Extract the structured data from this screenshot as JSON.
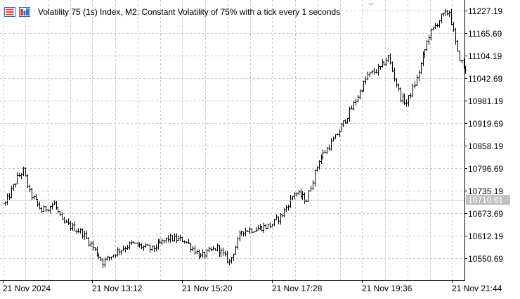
{
  "window": {
    "title": "Volatility 75 (1s) Index, M2:  Constant Volatility of 75% with a tick every 1 seconds",
    "icons": [
      "indicator-list-icon",
      "object-list-icon"
    ]
  },
  "colors": {
    "background": "#ffffff",
    "grid": "#c8c8c8",
    "bars": "#000000",
    "bid_line": "#c0c0c0",
    "bid_label_bg": "#c0c0c0"
  },
  "chart_data": {
    "type": "ohlc",
    "symbol": "Volatility 75 (1s) Index",
    "timeframe": "M2",
    "grid": true,
    "bid_price": "10710.61",
    "ylim": [
      10510,
      11240
    ],
    "y_ticks": [
      "11227.19",
      "11165.69",
      "11104.19",
      "11042.69",
      "10981.19",
      "10919.69",
      "10858.19",
      "10796.69",
      "10735.19",
      "10673.69",
      "10612.19",
      "10550.69"
    ],
    "x_ticks": [
      "21 Nov 2024",
      "21 Nov 13:12",
      "21 Nov 15:20",
      "21 Nov 17:28",
      "21 Nov 19:36",
      "21 Nov 21:44"
    ],
    "path_anchors": [
      {
        "bar": 0,
        "price": 10700
      },
      {
        "bar": 6,
        "price": 10770
      },
      {
        "bar": 9,
        "price": 10790
      },
      {
        "bar": 12,
        "price": 10730
      },
      {
        "bar": 18,
        "price": 10680
      },
      {
        "bar": 24,
        "price": 10700
      },
      {
        "bar": 28,
        "price": 10650
      },
      {
        "bar": 38,
        "price": 10620
      },
      {
        "bar": 48,
        "price": 10540
      },
      {
        "bar": 55,
        "price": 10570
      },
      {
        "bar": 62,
        "price": 10590
      },
      {
        "bar": 72,
        "price": 10575
      },
      {
        "bar": 80,
        "price": 10605
      },
      {
        "bar": 88,
        "price": 10600
      },
      {
        "bar": 96,
        "price": 10555
      },
      {
        "bar": 104,
        "price": 10580
      },
      {
        "bar": 110,
        "price": 10540
      },
      {
        "bar": 116,
        "price": 10625
      },
      {
        "bar": 122,
        "price": 10630
      },
      {
        "bar": 130,
        "price": 10640
      },
      {
        "bar": 136,
        "price": 10670
      },
      {
        "bar": 142,
        "price": 10730
      },
      {
        "bar": 148,
        "price": 10710
      },
      {
        "bar": 154,
        "price": 10820
      },
      {
        "bar": 162,
        "price": 10880
      },
      {
        "bar": 170,
        "price": 10960
      },
      {
        "bar": 178,
        "price": 11050
      },
      {
        "bar": 184,
        "price": 11070
      },
      {
        "bar": 188,
        "price": 11100
      },
      {
        "bar": 194,
        "price": 10990
      },
      {
        "bar": 197,
        "price": 10975
      },
      {
        "bar": 202,
        "price": 11040
      },
      {
        "bar": 208,
        "price": 11160
      },
      {
        "bar": 214,
        "price": 11210
      },
      {
        "bar": 218,
        "price": 11225
      },
      {
        "bar": 222,
        "price": 11110
      },
      {
        "bar": 226,
        "price": 11060
      }
    ]
  }
}
